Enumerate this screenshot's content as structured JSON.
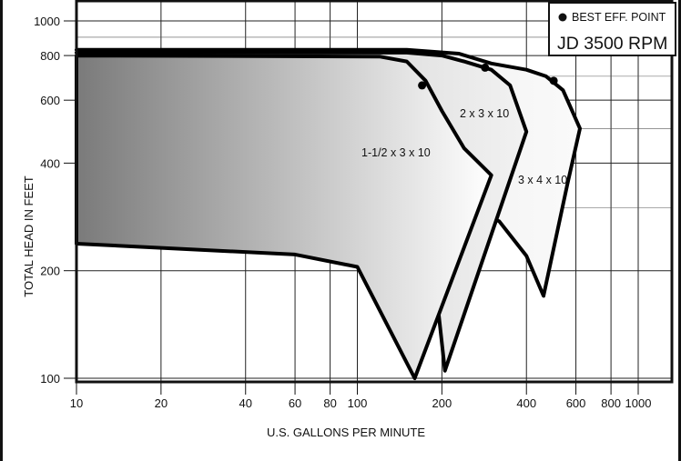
{
  "chart_data": {
    "type": "area",
    "title": "JD 3500 RPM",
    "legend": {
      "marker_label": "BEST EFF. POINT",
      "placement": "top-right"
    },
    "xlabel": "U.S. GALLONS PER MINUTE",
    "ylabel": "TOTAL HEAD IN FEET",
    "x_scale": "log",
    "y_scale": "log",
    "xlim": [
      10,
      1400
    ],
    "ylim": [
      100,
      1100
    ],
    "grid": true,
    "x_ticks": [
      10,
      20,
      40,
      60,
      80,
      100,
      200,
      400,
      600,
      800,
      1000
    ],
    "y_ticks": [
      100,
      200,
      400,
      600,
      800,
      1000
    ],
    "x_tick_labels": [
      "10",
      "20",
      "40",
      "60",
      "80",
      "100",
      "200",
      "400",
      "600",
      "800",
      "1000"
    ],
    "y_tick_labels": [
      "100",
      "200",
      "400",
      "600",
      "800",
      "1000"
    ],
    "series": [
      {
        "name": "3 x 4 x 10",
        "color": "#f4f4f4",
        "upper": [
          [
            10,
            830
          ],
          [
            150,
            830
          ],
          [
            230,
            810
          ],
          [
            300,
            760
          ],
          [
            400,
            730
          ],
          [
            470,
            700
          ],
          [
            540,
            640
          ],
          [
            620,
            500
          ]
        ],
        "lower": [
          [
            620,
            500
          ],
          [
            560,
            350
          ],
          [
            460,
            170
          ],
          [
            400,
            220
          ],
          [
            320,
            275
          ]
        ],
        "best_eff_point": [
          500,
          680
        ]
      },
      {
        "name": "2 x 3 x 10",
        "color": "#dcdcdc",
        "upper": [
          [
            10,
            815
          ],
          [
            150,
            815
          ],
          [
            200,
            800
          ],
          [
            240,
            770
          ],
          [
            300,
            730
          ],
          [
            350,
            660
          ],
          [
            400,
            490
          ]
        ],
        "lower": [
          [
            400,
            490
          ],
          [
            205,
            105
          ],
          [
            195,
            150
          ]
        ],
        "best_eff_point": [
          285,
          740
        ]
      },
      {
        "name": "1-1/2 x 3 x 10",
        "color": "#9a9a9a",
        "upper": [
          [
            10,
            800
          ],
          [
            120,
            795
          ],
          [
            150,
            770
          ],
          [
            175,
            680
          ],
          [
            200,
            560
          ],
          [
            240,
            440
          ],
          [
            300,
            370
          ]
        ],
        "lower": [
          [
            300,
            370
          ],
          [
            160,
            100
          ],
          [
            100,
            205
          ],
          [
            60,
            222
          ],
          [
            10,
            238
          ]
        ],
        "best_eff_point": [
          170,
          660
        ]
      }
    ]
  }
}
